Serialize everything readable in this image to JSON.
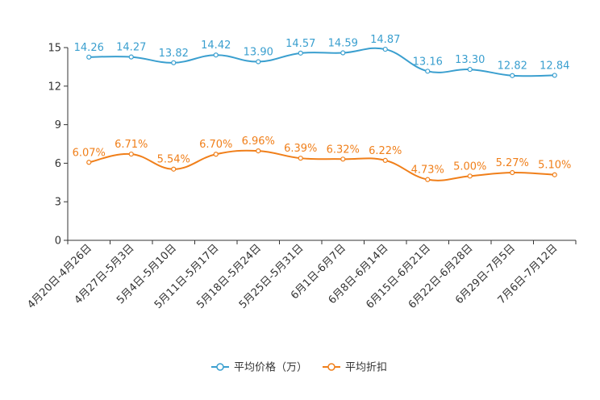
{
  "chart_data": {
    "type": "line",
    "title": "",
    "xlabel": "",
    "ylabel": "",
    "ylim": [
      0,
      15
    ],
    "yticks": [
      0,
      3,
      6,
      9,
      12,
      15
    ],
    "grid": false,
    "legend_position": "bottom-center",
    "categories": [
      "4月20日-4月26日",
      "4月27日-5月3日",
      "5月4日-5月10日",
      "5月11日-5月17日",
      "5月18日-5月24日",
      "5月25日-5月31日",
      "6月1日-6月7日",
      "6月8日-6月14日",
      "6月15日-6月21日",
      "6月22日-6月28日",
      "6月29日-7月5日",
      "7月6日-7月12日"
    ],
    "series": [
      {
        "name": "平均价格（万）",
        "color": "#3a9fcf",
        "values": [
          14.26,
          14.27,
          13.82,
          14.42,
          13.9,
          14.57,
          14.59,
          14.87,
          13.16,
          13.3,
          12.82,
          12.84
        ],
        "labels": [
          "14.26",
          "14.27",
          "13.82",
          "14.42",
          "13.90",
          "14.57",
          "14.59",
          "14.87",
          "13.16",
          "13.30",
          "12.82",
          "12.84"
        ]
      },
      {
        "name": "平均折扣",
        "color": "#f07f1a",
        "values": [
          6.07,
          6.71,
          5.54,
          6.7,
          6.96,
          6.39,
          6.32,
          6.22,
          4.73,
          5.0,
          5.27,
          5.1
        ],
        "labels": [
          "6.07%",
          "6.71%",
          "5.54%",
          "6.70%",
          "6.96%",
          "6.39%",
          "6.32%",
          "6.22%",
          "4.73%",
          "5.00%",
          "5.27%",
          "5.10%"
        ]
      }
    ]
  }
}
